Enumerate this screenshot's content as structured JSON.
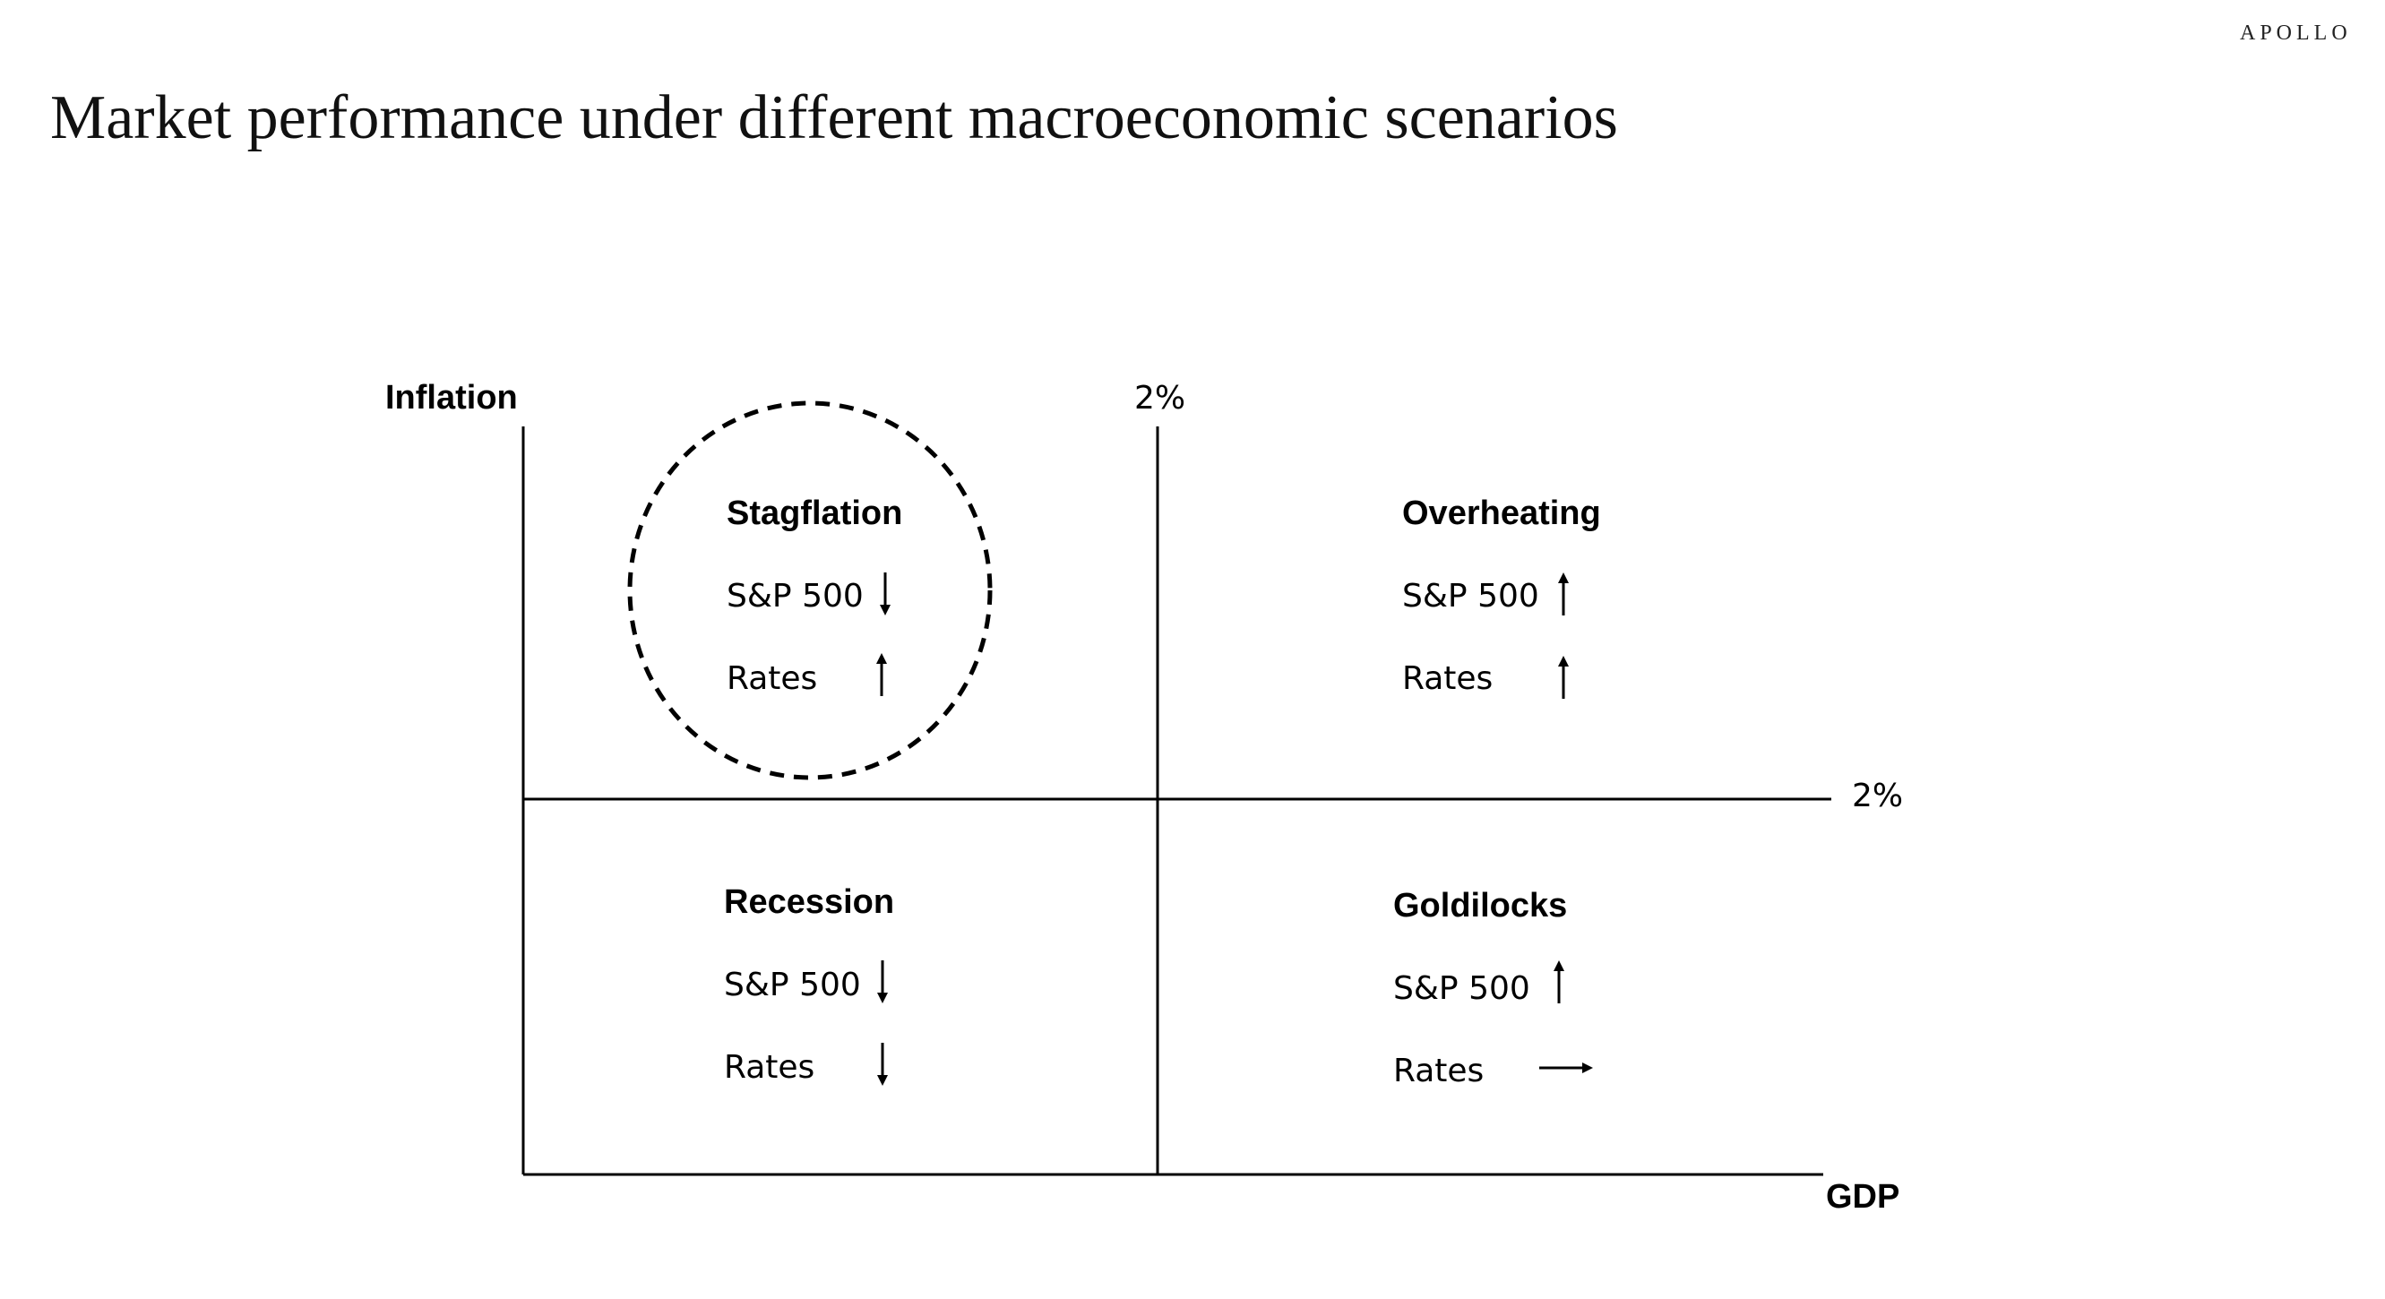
{
  "header": {
    "brand": "APOLLO",
    "title": "Market performance under different macroeconomic scenarios"
  },
  "diagram": {
    "y_axis_label": "Inflation",
    "x_axis_label": "GDP",
    "vertical_threshold_label": "2%",
    "horizontal_threshold_label": "2%",
    "highlighted_quadrant": "Stagflation",
    "quadrants": {
      "top_left": {
        "title": "Stagflation",
        "sp500_label": "S&P 500",
        "sp500_direction": "down",
        "rates_label": "Rates",
        "rates_direction": "up"
      },
      "top_right": {
        "title": "Overheating",
        "sp500_label": "S&P 500",
        "sp500_direction": "up",
        "rates_label": "Rates",
        "rates_direction": "up"
      },
      "bottom_left": {
        "title": "Recession",
        "sp500_label": "S&P 500",
        "sp500_direction": "down",
        "rates_label": "Rates",
        "rates_direction": "down"
      },
      "bottom_right": {
        "title": "Goldilocks",
        "sp500_label": "S&P 500",
        "sp500_direction": "up",
        "rates_label": "Rates",
        "rates_direction": "flat"
      }
    }
  }
}
